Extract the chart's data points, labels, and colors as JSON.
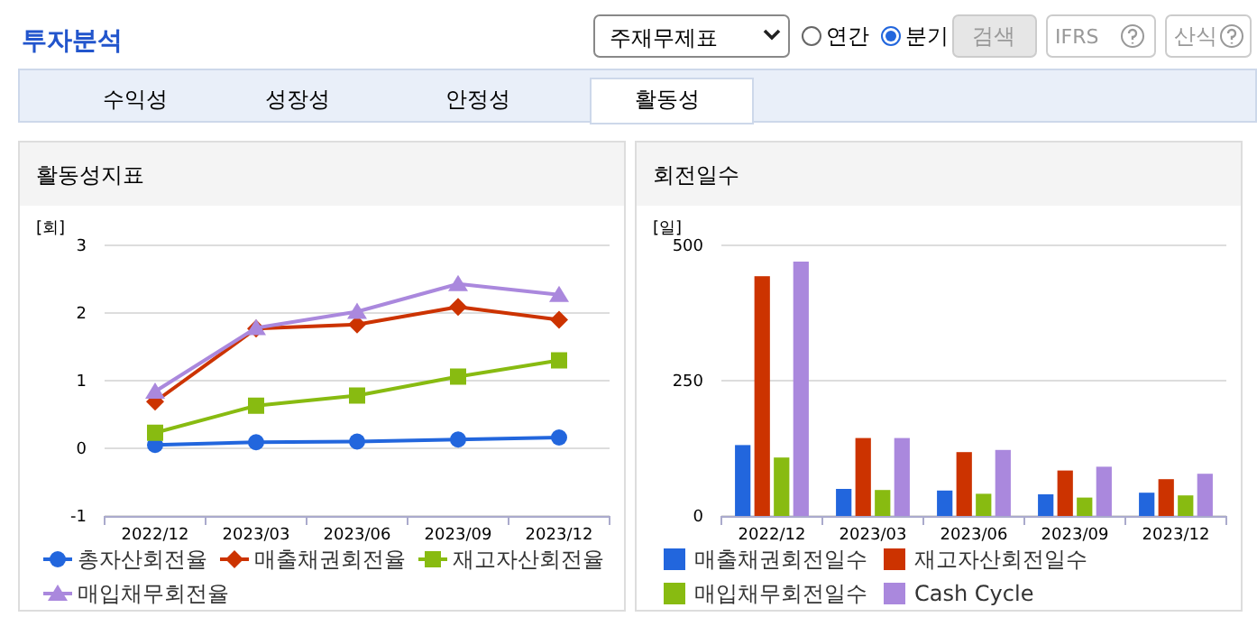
{
  "chart_data": [
    {
      "type": "other",
      "title": "투자분석",
      "annotations": [
        "주재무제표",
        "연간",
        "분기",
        "검색",
        "IFRS",
        "산식",
        "수익성",
        "성장성",
        "안정성",
        "활동성"
      ]
    },
    {
      "type": "line",
      "title": "활동성지표",
      "ylabel": "[회]",
      "categories": [
        "2022/12",
        "2023/03",
        "2023/06",
        "2023/09",
        "2023/12"
      ],
      "ylim": [
        -1,
        3
      ],
      "yticks": [
        -1,
        0,
        1,
        2,
        3
      ],
      "grid": "y",
      "legend": "bottom",
      "series": [
        {
          "name": "총자산회전율",
          "color": "#2266dd",
          "marker": "circle",
          "values": [
            0.05,
            0.09,
            0.1,
            0.13,
            0.16
          ]
        },
        {
          "name": "매출채권회전율",
          "color": "#cc3300",
          "marker": "diamond",
          "values": [
            0.69,
            1.77,
            1.83,
            2.09,
            1.9
          ]
        },
        {
          "name": "재고자산회전율",
          "color": "#88bb11",
          "marker": "square",
          "values": [
            0.23,
            0.63,
            0.78,
            1.06,
            1.3
          ]
        },
        {
          "name": "매입채무회전율",
          "color": "#aa88dd",
          "marker": "triangle",
          "values": [
            0.84,
            1.78,
            2.02,
            2.43,
            2.27
          ]
        }
      ]
    },
    {
      "type": "bar",
      "title": "회전일수",
      "ylabel": "[일]",
      "categories": [
        "2022/12",
        "2023/03",
        "2023/06",
        "2023/09",
        "2023/12"
      ],
      "ylim": [
        0,
        500
      ],
      "yticks": [
        0,
        250,
        500
      ],
      "grid": "y",
      "legend": "bottom",
      "series": [
        {
          "name": "매출채권회전일수",
          "color": "#2266dd",
          "values": [
            131,
            50,
            47,
            40,
            43
          ]
        },
        {
          "name": "재고자산회전일수",
          "color": "#cc3300",
          "values": [
            443,
            144,
            118,
            84,
            68
          ]
        },
        {
          "name": "매입채무회전일수",
          "color": "#88bb11",
          "values": [
            108,
            48,
            41,
            34,
            38
          ]
        },
        {
          "name": "Cash Cycle",
          "color": "#aa88dd",
          "values": [
            470,
            144,
            122,
            91,
            78
          ]
        }
      ]
    }
  ]
}
